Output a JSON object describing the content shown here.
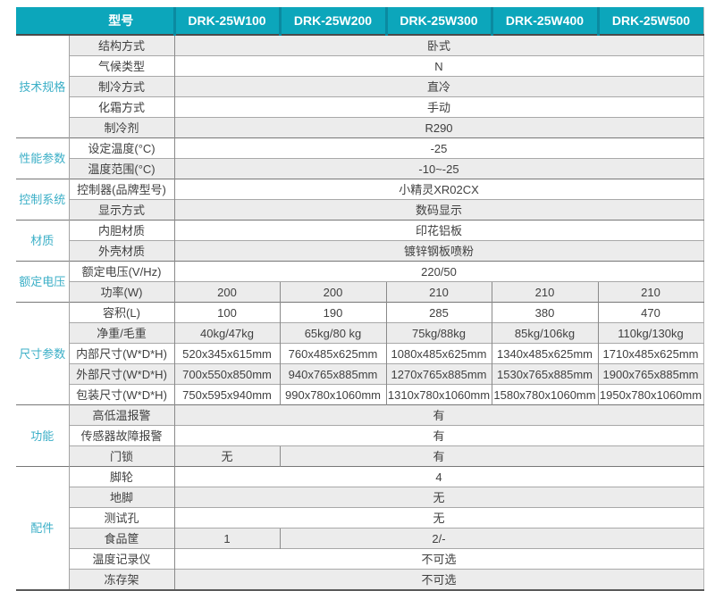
{
  "colors": {
    "header_bg": "#0ca6bb",
    "header_divider": "#0b8aa0",
    "group_text": "#3bafc7",
    "stripe_bg": "#ececec",
    "body_text": "#404040"
  },
  "table": {
    "corner_label": "型号",
    "models": [
      "DRK-25W100",
      "DRK-25W200",
      "DRK-25W300",
      "DRK-25W400",
      "DRK-25W500"
    ],
    "groups": [
      {
        "label": "技术规格",
        "rows": [
          {
            "label": "结构方式",
            "merged": "卧式"
          },
          {
            "label": "气候类型",
            "merged": "N"
          },
          {
            "label": "制冷方式",
            "merged": "直冷"
          },
          {
            "label": "化霜方式",
            "merged": "手动"
          },
          {
            "label": "制冷剂",
            "merged": "R290"
          }
        ]
      },
      {
        "label": "性能参数",
        "rows": [
          {
            "label": "设定温度(°C)",
            "merged": "-25"
          },
          {
            "label": "温度范围(°C)",
            "merged": "-10~-25"
          }
        ]
      },
      {
        "label": "控制系统",
        "rows": [
          {
            "label": "控制器(品牌型号)",
            "merged": "小精灵XR02CX"
          },
          {
            "label": "显示方式",
            "merged": "数码显示"
          }
        ]
      },
      {
        "label": "材质",
        "rows": [
          {
            "label": "内胆材质",
            "merged": "印花铝板"
          },
          {
            "label": "外壳材质",
            "merged": "镀锌钢板喷粉"
          }
        ]
      },
      {
        "label": "额定电压",
        "rows": [
          {
            "label": "额定电压(V/Hz)",
            "merged": "220/50"
          },
          {
            "label": "功率(W)",
            "values": [
              "200",
              "200",
              "210",
              "210",
              "210"
            ]
          }
        ]
      },
      {
        "label": "尺寸参数",
        "rows": [
          {
            "label": "容积(L)",
            "values": [
              "100",
              "190",
              "285",
              "380",
              "470"
            ]
          },
          {
            "label": "净重/毛重",
            "values": [
              "40kg/47kg",
              "65kg/80 kg",
              "75kg/88kg",
              "85kg/106kg",
              "110kg/130kg"
            ]
          },
          {
            "label": "内部尺寸(W*D*H)",
            "values": [
              "520x345x615mm",
              "760x485x625mm",
              "1080x485x625mm",
              "1340x485x625mm",
              "1710x485x625mm"
            ]
          },
          {
            "label": "外部尺寸(W*D*H)",
            "values": [
              "700x550x850mm",
              "940x765x885mm",
              "1270x765x885mm",
              "1530x765x885mm",
              "1900x765x885mm"
            ]
          },
          {
            "label": "包装尺寸(W*D*H)",
            "values": [
              "750x595x940mm",
              "990x780x1060mm",
              "1310x780x1060mm",
              "1580x780x1060mm",
              "1950x780x1060mm"
            ]
          }
        ]
      },
      {
        "label": "功能",
        "rows": [
          {
            "label": "高低温报警",
            "merged": "有"
          },
          {
            "label": "传感器故障报警",
            "merged": "有"
          },
          {
            "label": "门锁",
            "split": {
              "first": "无",
              "rest": "有"
            }
          }
        ]
      },
      {
        "label": "配件",
        "rows": [
          {
            "label": "脚轮",
            "merged": "4"
          },
          {
            "label": "地脚",
            "merged": "无"
          },
          {
            "label": "测试孔",
            "merged": "无"
          },
          {
            "label": "食品筐",
            "split": {
              "first": "1",
              "rest": "2/-"
            }
          },
          {
            "label": "温度记录仪",
            "merged": "不可选"
          },
          {
            "label": "冻存架",
            "merged": "不可选"
          }
        ]
      }
    ]
  }
}
